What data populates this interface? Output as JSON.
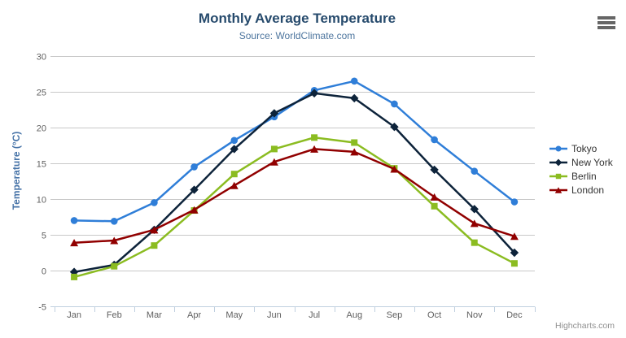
{
  "chart_data": {
    "type": "line",
    "title": "Monthly Average Temperature",
    "subtitle": "Source: WorldClimate.com",
    "categories": [
      "Jan",
      "Feb",
      "Mar",
      "Apr",
      "May",
      "Jun",
      "Jul",
      "Aug",
      "Sep",
      "Oct",
      "Nov",
      "Dec"
    ],
    "xlabel": "",
    "ylabel": "Temperature (°C)",
    "ylim": [
      -5,
      30
    ],
    "ytick_step": 5,
    "grid": true,
    "legend_position": "right-middle",
    "series": [
      {
        "name": "Tokyo",
        "color": "#2f7ed8",
        "marker": "circle",
        "values": [
          7.0,
          6.9,
          9.5,
          14.5,
          18.2,
          21.5,
          25.2,
          26.5,
          23.3,
          18.3,
          13.9,
          9.6
        ]
      },
      {
        "name": "New York",
        "color": "#0d233a",
        "marker": "diamond",
        "values": [
          -0.2,
          0.8,
          5.7,
          11.3,
          17.0,
          22.0,
          24.8,
          24.1,
          20.1,
          14.1,
          8.6,
          2.5
        ]
      },
      {
        "name": "Berlin",
        "color": "#8bbc21",
        "marker": "square",
        "values": [
          -0.9,
          0.6,
          3.5,
          8.4,
          13.5,
          17.0,
          18.6,
          17.9,
          14.3,
          9.0,
          3.9,
          1.0
        ]
      },
      {
        "name": "London",
        "color": "#910000",
        "marker": "triangle",
        "values": [
          3.9,
          4.2,
          5.7,
          8.5,
          11.9,
          15.2,
          17.0,
          16.6,
          14.2,
          10.3,
          6.6,
          4.8
        ]
      }
    ]
  },
  "credits": {
    "label": "Highcharts.com"
  },
  "icons": {
    "context_menu": "hamburger-icon"
  },
  "colors": {
    "title": "#274b6d",
    "subtitle": "#4d759e",
    "axis_labels": "#606060",
    "y_axis_title": "#4572a7",
    "gridline": "#c8c8c8",
    "axis_line": "#c0d0e0",
    "legend_text": "#333333",
    "credits_text": "#909090",
    "background": "#ffffff"
  }
}
